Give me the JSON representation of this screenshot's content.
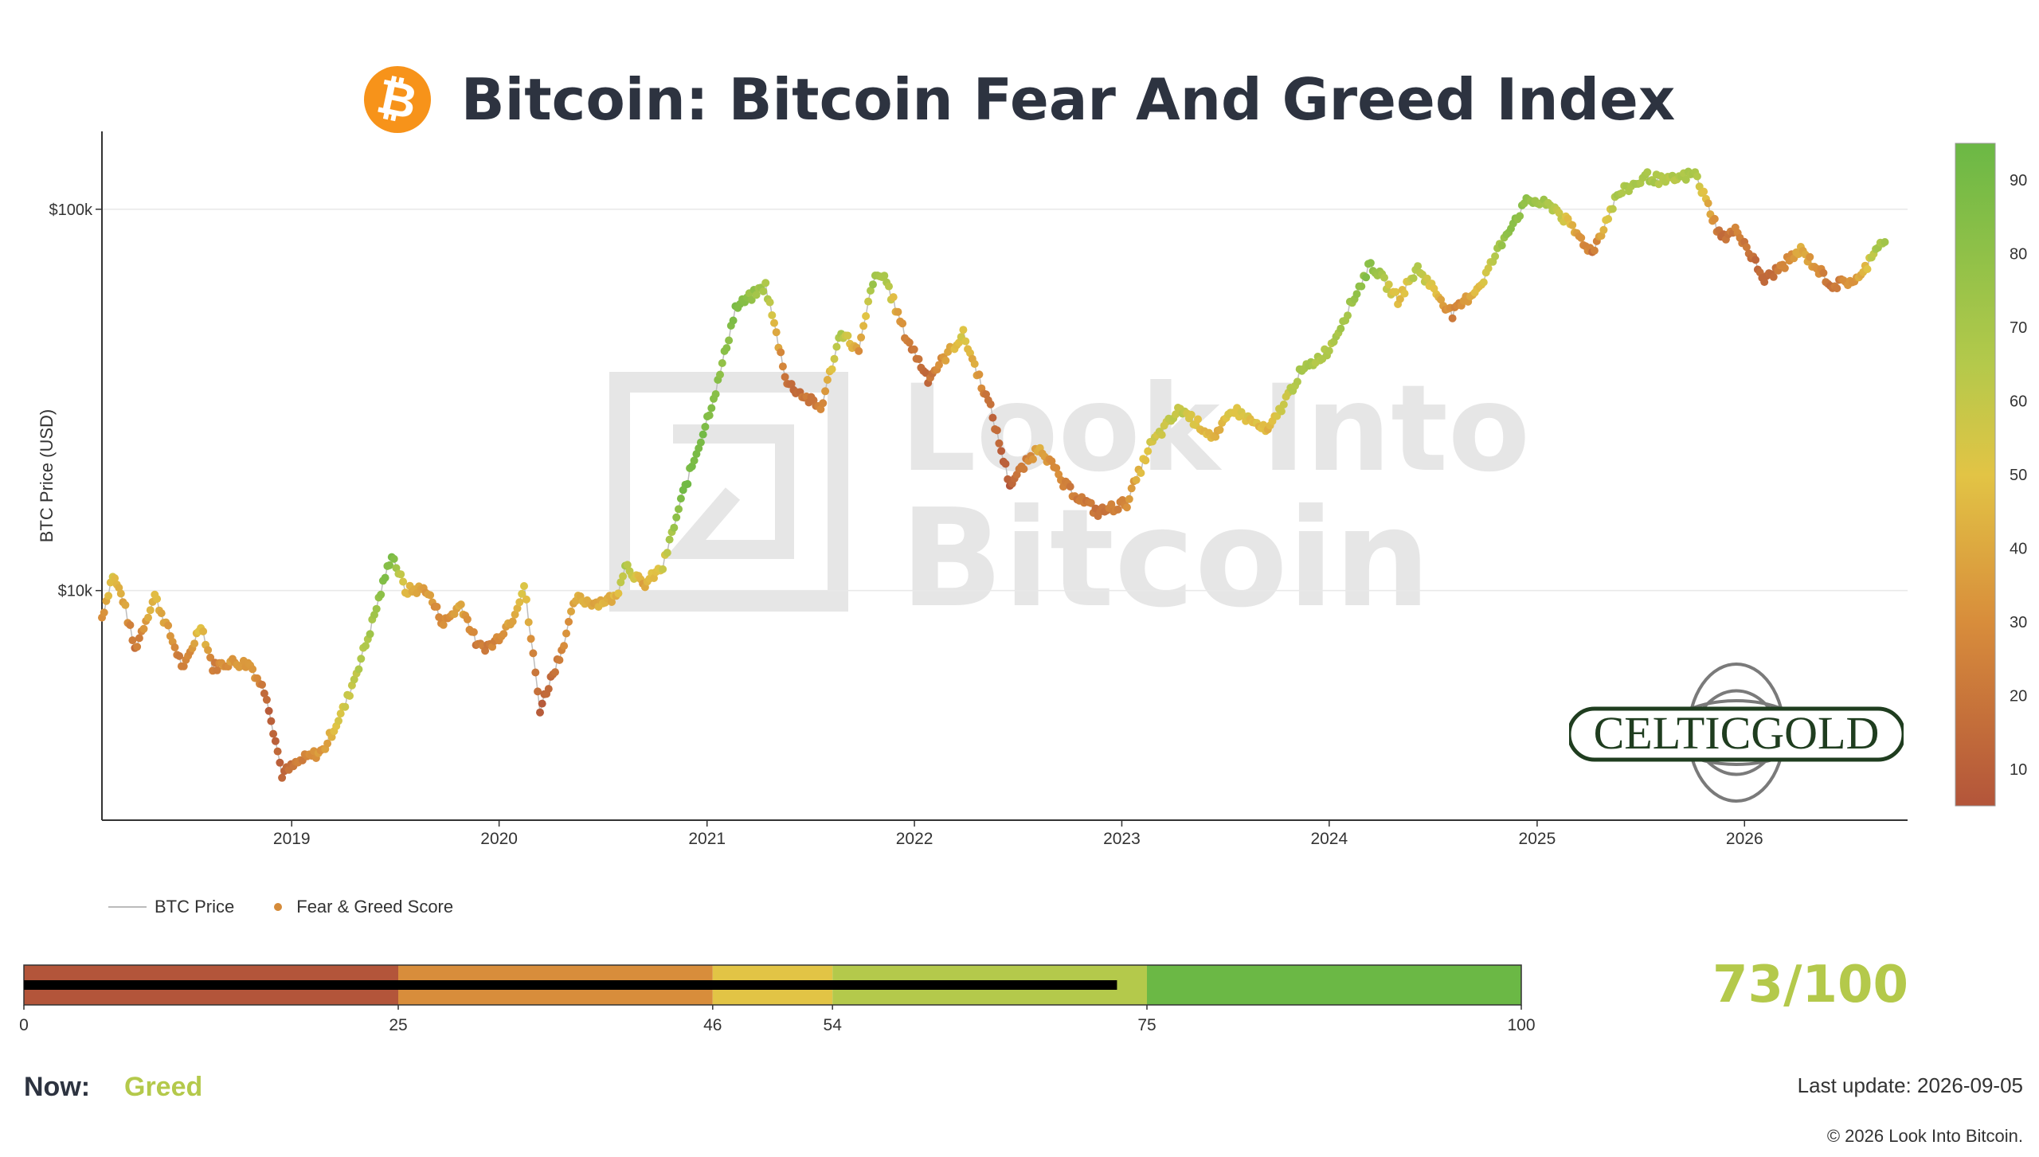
{
  "header": {
    "title": "Bitcoin: Bitcoin Fear And Greed Index",
    "logo_icon": "bitcoin-logo-icon",
    "logo_glyph": "₿"
  },
  "watermark": {
    "line1": "Look Into",
    "line2": "Bitcoin"
  },
  "sponsor_logo": {
    "text": "CELTICGOLD"
  },
  "colors": {
    "extreme_fear": "#b3553a",
    "fear": "#d88d3b",
    "neutral": "#e2c445",
    "greed": "#b4c94b",
    "extreme_greed": "#6bb845"
  },
  "chart_data": {
    "type": "scatter",
    "title": "Bitcoin: Bitcoin Fear And Greed Index",
    "ylabel": "BTC Price (USD)",
    "y_scale": "log",
    "ylim": [
      2500,
      160000
    ],
    "y_ticks": [
      {
        "value": 10000,
        "label": "$10k"
      },
      {
        "value": 100000,
        "label": "$100k"
      }
    ],
    "x_ticks": [
      "2019",
      "2020",
      "2021",
      "2022",
      "2023",
      "2024",
      "2025",
      "2026"
    ],
    "xlim": [
      "2018-02-01",
      "2026-10-15"
    ],
    "legend": {
      "position": "bottom-left",
      "items": [
        "BTC Price",
        "Fear & Greed Score"
      ]
    },
    "colorbar": {
      "range": [
        5,
        95
      ],
      "ticks": [
        10,
        20,
        30,
        40,
        50,
        60,
        70,
        80,
        90
      ]
    },
    "series": [
      {
        "name": "BTC Price",
        "points": [
          [
            "2018-02-01",
            8500,
            30
          ],
          [
            "2018-02-20",
            11000,
            52
          ],
          [
            "2018-03-10",
            9500,
            40
          ],
          [
            "2018-03-31",
            7000,
            18
          ],
          [
            "2018-05-05",
            9700,
            48
          ],
          [
            "2018-06-25",
            6200,
            20
          ],
          [
            "2018-07-25",
            8200,
            50
          ],
          [
            "2018-08-15",
            6300,
            22
          ],
          [
            "2018-09-15",
            6500,
            35
          ],
          [
            "2018-10-20",
            6400,
            38
          ],
          [
            "2018-11-18",
            5300,
            12
          ],
          [
            "2018-12-15",
            3300,
            10
          ],
          [
            "2019-01-20",
            3600,
            25
          ],
          [
            "2019-02-25",
            3800,
            35
          ],
          [
            "2019-04-05",
            5000,
            58
          ],
          [
            "2019-05-15",
            7500,
            70
          ],
          [
            "2019-06-26",
            12500,
            88
          ],
          [
            "2019-07-20",
            10000,
            45
          ],
          [
            "2019-08-25",
            10100,
            35
          ],
          [
            "2019-09-25",
            8200,
            28
          ],
          [
            "2019-10-26",
            9200,
            42
          ],
          [
            "2019-11-25",
            7100,
            20
          ],
          [
            "2019-12-20",
            7200,
            25
          ],
          [
            "2020-01-25",
            8500,
            40
          ],
          [
            "2020-02-14",
            10300,
            52
          ],
          [
            "2020-03-13",
            4900,
            8
          ],
          [
            "2020-04-20",
            7000,
            25
          ],
          [
            "2020-05-15",
            9500,
            42
          ],
          [
            "2020-06-20",
            9300,
            40
          ],
          [
            "2020-07-25",
            9600,
            45
          ],
          [
            "2020-08-10",
            11800,
            70
          ],
          [
            "2020-09-10",
            10300,
            40
          ],
          [
            "2020-10-15",
            11500,
            55
          ],
          [
            "2020-11-20",
            18000,
            90
          ],
          [
            "2020-12-25",
            26000,
            92
          ],
          [
            "2021-01-20",
            35000,
            80
          ],
          [
            "2021-02-20",
            55000,
            86
          ],
          [
            "2021-04-14",
            63000,
            70
          ],
          [
            "2021-05-22",
            35000,
            15
          ],
          [
            "2021-06-25",
            32000,
            20
          ],
          [
            "2021-07-20",
            30000,
            25
          ],
          [
            "2021-08-25",
            48000,
            68
          ],
          [
            "2021-09-25",
            42000,
            32
          ],
          [
            "2021-10-20",
            65000,
            74
          ],
          [
            "2021-11-09",
            67000,
            70
          ],
          [
            "2021-12-15",
            47000,
            25
          ],
          [
            "2022-01-25",
            36000,
            15
          ],
          [
            "2022-03-28",
            47000,
            55
          ],
          [
            "2022-05-15",
            30000,
            15
          ],
          [
            "2022-06-18",
            19000,
            8
          ],
          [
            "2022-08-10",
            24000,
            40
          ],
          [
            "2022-09-20",
            19000,
            25
          ],
          [
            "2022-11-20",
            16000,
            18
          ],
          [
            "2023-01-10",
            17000,
            30
          ],
          [
            "2023-02-20",
            24000,
            55
          ],
          [
            "2023-04-14",
            30000,
            62
          ],
          [
            "2023-06-15",
            25000,
            40
          ],
          [
            "2023-07-15",
            30000,
            55
          ],
          [
            "2023-09-15",
            26000,
            45
          ],
          [
            "2023-11-10",
            37000,
            70
          ],
          [
            "2024-01-01",
            43000,
            65
          ],
          [
            "2024-03-14",
            72000,
            85
          ],
          [
            "2024-05-01",
            58000,
            45
          ],
          [
            "2024-06-05",
            70000,
            68
          ],
          [
            "2024-08-05",
            53000,
            25
          ],
          [
            "2024-09-25",
            64000,
            50
          ],
          [
            "2024-11-12",
            89000,
            82
          ],
          [
            "2024-12-17",
            106000,
            80
          ],
          [
            "2025-02-01",
            101000,
            65
          ],
          [
            "2025-04-08",
            77000,
            20
          ],
          [
            "2025-05-22",
            109000,
            70
          ],
          [
            "2025-07-14",
            122000,
            72
          ],
          [
            "2025-08-15",
            118000,
            65
          ],
          [
            "2025-10-06",
            124000,
            68
          ],
          [
            "2025-11-21",
            84000,
            15
          ],
          [
            "2025-12-20",
            88000,
            25
          ],
          [
            "2026-02-05",
            65000,
            12
          ],
          [
            "2026-04-10",
            78000,
            40
          ],
          [
            "2026-06-05",
            63000,
            18
          ],
          [
            "2026-07-25",
            66000,
            40
          ],
          [
            "2026-08-20",
            80000,
            68
          ],
          [
            "2026-09-05",
            82000,
            73
          ]
        ]
      },
      {
        "name": "Fear & Greed Score"
      }
    ]
  },
  "gauge": {
    "value": 73,
    "score_text": "73/100",
    "ticks": [
      0,
      25,
      46,
      54,
      75,
      100
    ],
    "segments": [
      {
        "from": 0,
        "to": 25,
        "color": "#b3553a"
      },
      {
        "from": 25,
        "to": 46,
        "color": "#d88d3b"
      },
      {
        "from": 46,
        "to": 54,
        "color": "#e2c445"
      },
      {
        "from": 54,
        "to": 75,
        "color": "#b4c94b"
      },
      {
        "from": 75,
        "to": 100,
        "color": "#6bb845"
      }
    ]
  },
  "status": {
    "now_label": "Now:",
    "now_value": "Greed"
  },
  "footer": {
    "last_update": "Last update: 2026-09-05",
    "copyright": "© 2026 Look Into Bitcoin."
  }
}
